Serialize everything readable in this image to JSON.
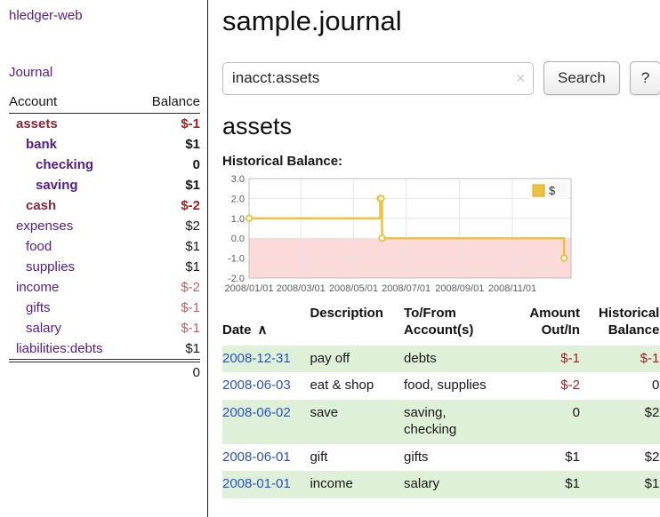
{
  "app": {
    "title": "hledger-web",
    "nav_journal": "Journal"
  },
  "sidebar": {
    "columns": {
      "account": "Account",
      "balance": "Balance"
    },
    "accounts": [
      {
        "name": "assets",
        "balance": "$-1",
        "depth": 0,
        "bold": true,
        "name_color": "maroon"
      },
      {
        "name": "bank",
        "balance": "$1",
        "depth": 1,
        "bold": true,
        "name_color": "purple"
      },
      {
        "name": "checking",
        "balance": "0",
        "depth": 2,
        "bold": true,
        "name_color": "purple"
      },
      {
        "name": "saving",
        "balance": "$1",
        "depth": 2,
        "bold": true,
        "name_color": "purple"
      },
      {
        "name": "cash",
        "balance": "$-2",
        "depth": 1,
        "bold": true,
        "name_color": "maroon"
      },
      {
        "name": "expenses",
        "balance": "$2",
        "depth": 0,
        "bold": false,
        "name_color": "purple"
      },
      {
        "name": "food",
        "balance": "$1",
        "depth": 1,
        "bold": false,
        "name_color": "purple"
      },
      {
        "name": "supplies",
        "balance": "$1",
        "depth": 1,
        "bold": false,
        "name_color": "purple"
      },
      {
        "name": "income",
        "balance": "$-2",
        "depth": 0,
        "bold": false,
        "name_color": "purple"
      },
      {
        "name": "gifts",
        "balance": "$-1",
        "depth": 1,
        "bold": false,
        "name_color": "purple"
      },
      {
        "name": "salary",
        "balance": "$-1",
        "depth": 1,
        "bold": false,
        "name_color": "purple"
      },
      {
        "name": "liabilities:debts",
        "balance": "$1",
        "depth": 0,
        "bold": false,
        "name_color": "purple"
      }
    ],
    "total": "0"
  },
  "main": {
    "title": "sample.journal",
    "search": {
      "value": "inacct:assets",
      "button_label": "Search",
      "help_label": "?"
    },
    "account_heading": "assets",
    "chart_label": "Historical Balance:"
  },
  "icons": {
    "search_clear": "clear-x-icon",
    "date_sort": "sort-ascending-caret",
    "legend_swatch": "yellow-series-square"
  },
  "chart_data": {
    "type": "line",
    "step": true,
    "title": "Historical Balance",
    "xlim": [
      "2008-01-01",
      "2009-01-08"
    ],
    "ylim": [
      -2,
      3
    ],
    "yticks": [
      "3.0",
      "2.0",
      "1.0",
      "0.0",
      "-1.0",
      "-2.0"
    ],
    "xticks": [
      "2008/01/01",
      "2008/03/01",
      "2008/05/01",
      "2008/07/01",
      "2008/09/01",
      "2008/11/01"
    ],
    "series": [
      {
        "name": "$",
        "color": "#edc240",
        "points": [
          [
            "2008-01-01",
            1
          ],
          [
            "2008-06-01",
            2
          ],
          [
            "2008-06-02",
            2
          ],
          [
            "2008-06-03",
            0
          ],
          [
            "2008-12-31",
            -1
          ]
        ]
      }
    ],
    "negative_fill": "#fcdada",
    "legend_position": "top-right",
    "grid": true
  },
  "register": {
    "headers": {
      "date": "Date",
      "description": "Description",
      "accounts": "To/From\nAccount(s)",
      "amount": "Amount\nOut/In",
      "balance": "Historical\nBalance"
    },
    "rows": [
      {
        "date": "2008-12-31",
        "description": "pay off",
        "accounts": "debts",
        "amount": "$-1",
        "balance": "$-1"
      },
      {
        "date": "2008-06-03",
        "description": "eat & shop",
        "accounts": "food, supplies",
        "amount": "$-2",
        "balance": "0"
      },
      {
        "date": "2008-06-02",
        "description": "save",
        "accounts": "saving,\nchecking",
        "amount": "0",
        "balance": "$2"
      },
      {
        "date": "2008-06-01",
        "description": "gift",
        "accounts": "gifts",
        "amount": "$1",
        "balance": "$2"
      },
      {
        "date": "2008-01-01",
        "description": "income",
        "accounts": "salary",
        "amount": "$1",
        "balance": "$1"
      }
    ]
  },
  "colors": {
    "sidebar_link": "#551a8b",
    "selected_account_name": "#83283a",
    "negative_amount": "#a31f1f",
    "negative_amount_soft": "#c06060",
    "date_link": "#2a52be",
    "row_highlight": "#dff0d8",
    "series_color": "#edc240",
    "negative_region": "#fcdada"
  }
}
